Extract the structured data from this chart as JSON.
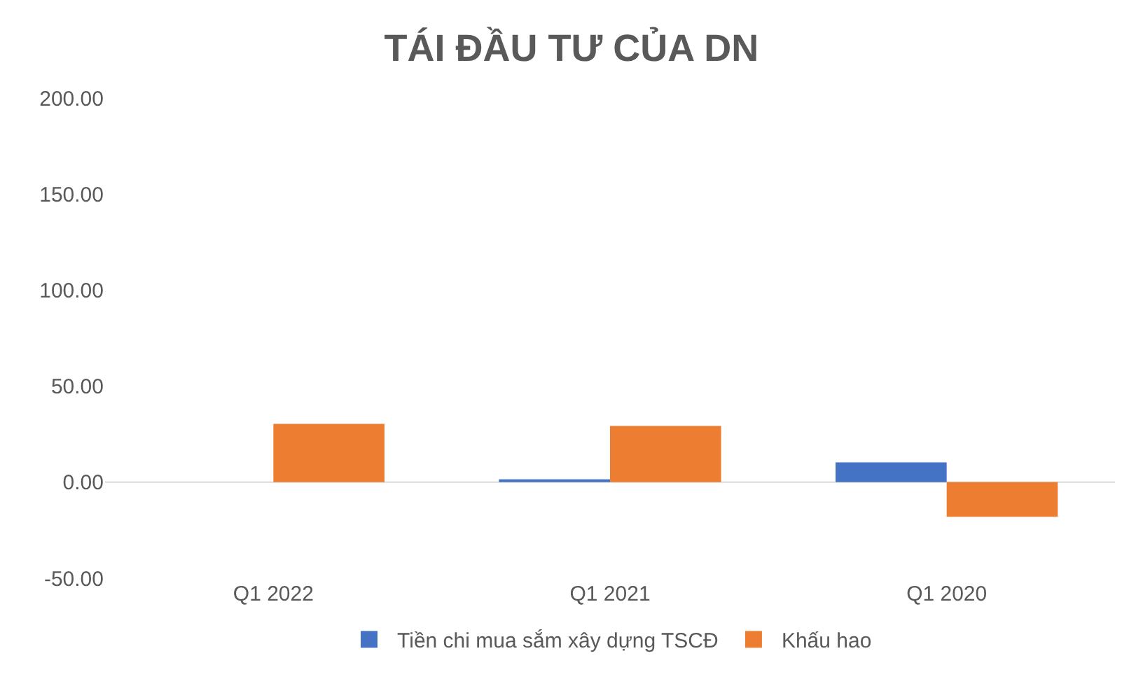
{
  "chart_data": {
    "type": "bar",
    "title": "TÁI ĐẦU TƯ CỦA DN",
    "categories": [
      "Q1 2022",
      "Q1 2021",
      "Q1 2020"
    ],
    "series": [
      {
        "name": "Tiền chi mua sắm xây dựng TSCĐ",
        "color": "#4472c4",
        "values": [
          0,
          1.5,
          10.3
        ]
      },
      {
        "name": "Khấu hao",
        "color": "#ed7d31",
        "values": [
          30.4,
          29.3,
          -18
        ]
      }
    ],
    "ylim": [
      -50,
      200
    ],
    "yticks": [
      {
        "value": -50,
        "label": "-50.00"
      },
      {
        "value": 0,
        "label": "0.00"
      },
      {
        "value": 50,
        "label": "50.00"
      },
      {
        "value": 100,
        "label": "100.00"
      },
      {
        "value": 150,
        "label": "150.00"
      },
      {
        "value": 200,
        "label": "200.00"
      }
    ],
    "ref_lines": [
      {
        "axis": "y",
        "value": 0,
        "color": "#d9d9d9"
      }
    ],
    "grid": false,
    "legend": "bottom"
  }
}
